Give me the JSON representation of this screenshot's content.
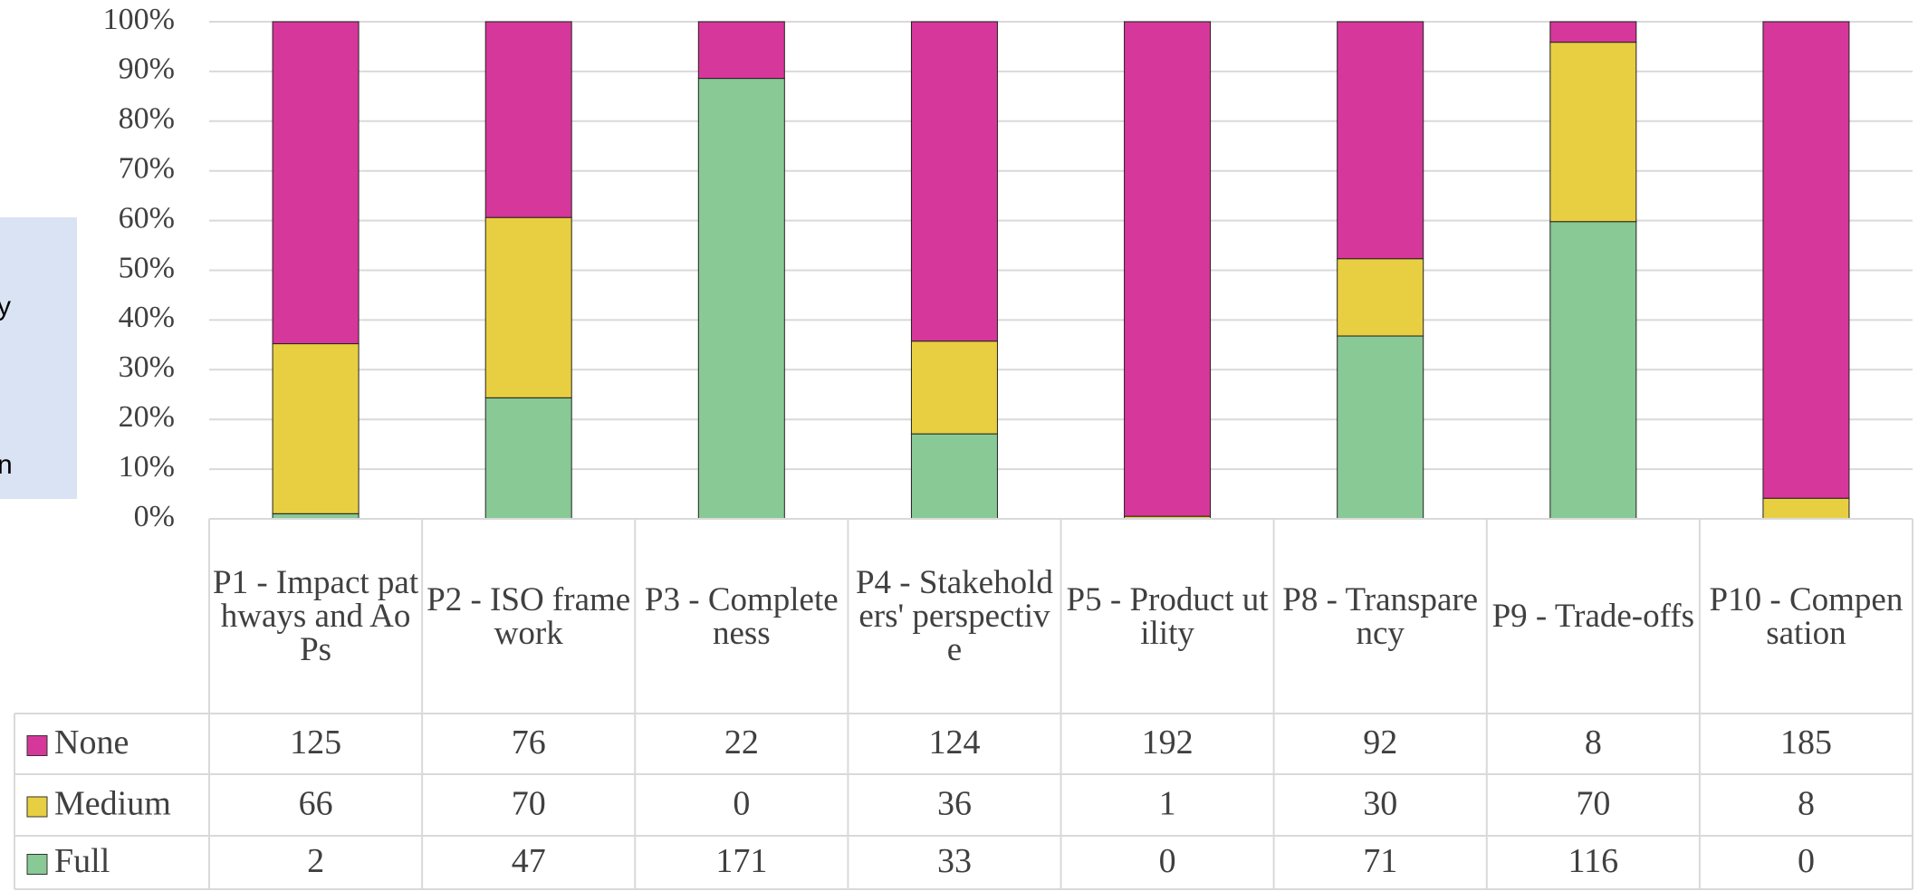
{
  "chart_data": {
    "type": "stacked_bar_100",
    "categories": [
      "P1 - Impact pathways and AoPs",
      "P2 - ISO framework",
      "P3 - Completeness",
      "P4 - Stakeholders' perspective",
      "P5 - Product utility",
      "P8 - Transparency",
      "P9 - Trade-offs",
      "P10 - Compensation"
    ],
    "series": [
      {
        "name": "None",
        "color": "#d6379a",
        "values": [
          125,
          76,
          22,
          124,
          192,
          92,
          8,
          185
        ]
      },
      {
        "name": "Medium",
        "color": "#e8cf42",
        "values": [
          66,
          70,
          0,
          36,
          1,
          30,
          70,
          8
        ]
      },
      {
        "name": "Full",
        "color": "#88c995",
        "values": [
          2,
          47,
          171,
          33,
          0,
          71,
          116,
          0
        ]
      }
    ],
    "ylim": [
      0,
      100
    ],
    "yticks": [
      {
        "value": 0,
        "label": "0%"
      },
      {
        "value": 10,
        "label": "10%"
      },
      {
        "value": 20,
        "label": "20%"
      },
      {
        "value": 30,
        "label": "30%"
      },
      {
        "value": 40,
        "label": "40%"
      },
      {
        "value": 50,
        "label": "50%"
      },
      {
        "value": 60,
        "label": "60%"
      },
      {
        "value": 70,
        "label": "70%"
      },
      {
        "value": 80,
        "label": "80%"
      },
      {
        "value": 90,
        "label": "90%"
      },
      {
        "value": 100,
        "label": "100%"
      }
    ],
    "grid": true,
    "annotations": [
      "y",
      "n"
    ]
  }
}
